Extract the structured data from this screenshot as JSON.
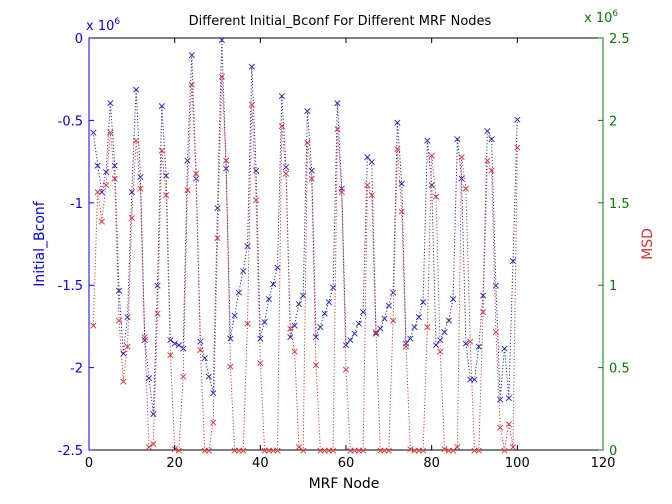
{
  "chart_data": {
    "type": "line",
    "title": "Different Initial_Bconf For Different MRF Nodes",
    "xlabel": "MRF Node",
    "ylabel_left": "Initial_Bconf",
    "ylabel_right": "MSD",
    "xlim": [
      0,
      120
    ],
    "ylim_left": [
      -2.5,
      0
    ],
    "ylim_right": [
      0,
      2.5
    ],
    "x_ticks": [
      "0",
      "20",
      "40",
      "60",
      "80",
      "100",
      "120"
    ],
    "y_ticks_left": [
      "0",
      "-0.5",
      "-1",
      "-1.5",
      "-2",
      "-2.5"
    ],
    "y_ticks_right": [
      "2.5",
      "2",
      "1.5",
      "1",
      "0.5",
      "0"
    ],
    "exponent_left_base": "x 10",
    "exponent_left_power": "6",
    "exponent_right_base": "x 10",
    "exponent_right_power": "6",
    "marker": "×",
    "colors": {
      "left": "#2020c0",
      "right": "#e03030",
      "left_axis": "#0000ff",
      "right_axis": "#008000",
      "right_label": "#e03030"
    },
    "series": [
      {
        "name": "Initial_Bconf",
        "axis": "left",
        "x": [
          1,
          2,
          3,
          4,
          5,
          6,
          7,
          8,
          9,
          10,
          11,
          12,
          13,
          14,
          15,
          16,
          17,
          18,
          19,
          20,
          21,
          22,
          23,
          24,
          25,
          26,
          27,
          28,
          29,
          30,
          31,
          32,
          33,
          34,
          35,
          36,
          37,
          38,
          39,
          40,
          41,
          42,
          43,
          44,
          45,
          46,
          47,
          48,
          49,
          50,
          51,
          52,
          53,
          54,
          55,
          56,
          57,
          58,
          59,
          60,
          61,
          62,
          63,
          64,
          65,
          66,
          67,
          68,
          69,
          70,
          71,
          72,
          73,
          74,
          75,
          76,
          77,
          78,
          79,
          80,
          81,
          82,
          83,
          84,
          85,
          86,
          87,
          88,
          89,
          90,
          91,
          92,
          93,
          94,
          95,
          96,
          97,
          98,
          99,
          100
        ],
        "values": [
          -0.57,
          -0.77,
          -0.93,
          -0.81,
          -0.39,
          -0.77,
          -1.53,
          -1.91,
          -1.69,
          -0.93,
          -0.31,
          -0.84,
          -1.83,
          -2.06,
          -2.28,
          -1.5,
          -0.41,
          -0.83,
          -1.83,
          -1.85,
          -1.86,
          -1.88,
          -0.74,
          -0.1,
          -0.85,
          -1.84,
          -1.94,
          -2.05,
          -2.15,
          -1.03,
          -0.01,
          -0.79,
          -1.82,
          -1.68,
          -1.54,
          -1.41,
          -1.26,
          -0.17,
          -0.8,
          -1.82,
          -1.72,
          -1.58,
          -1.49,
          -1.39,
          -0.35,
          -0.78,
          -1.81,
          -1.74,
          -1.61,
          -1.56,
          -0.44,
          -0.8,
          -1.81,
          -1.75,
          -1.67,
          -1.6,
          -1.51,
          -0.39,
          -0.91,
          -1.86,
          -1.83,
          -1.79,
          -1.73,
          -1.66,
          -0.72,
          -0.75,
          -1.79,
          -1.76,
          -1.7,
          -1.62,
          -1.54,
          -0.51,
          -0.88,
          -1.85,
          -1.82,
          -1.75,
          -1.69,
          -1.6,
          -0.62,
          -0.89,
          -1.86,
          -1.83,
          -1.78,
          -1.71,
          -1.58,
          -0.61,
          -0.85,
          -1.85,
          -2.07,
          -2.07,
          -1.87,
          -1.56,
          -0.56,
          -0.61,
          -1.5,
          -2.19,
          -1.88,
          -2.18,
          -1.35,
          -0.49
        ]
      },
      {
        "name": "MSD",
        "axis": "right",
        "x": [
          1,
          2,
          3,
          4,
          5,
          6,
          7,
          8,
          9,
          10,
          11,
          12,
          13,
          14,
          15,
          16,
          17,
          18,
          19,
          20,
          21,
          22,
          23,
          24,
          25,
          26,
          27,
          28,
          29,
          30,
          31,
          32,
          33,
          34,
          35,
          36,
          37,
          38,
          39,
          40,
          41,
          42,
          43,
          44,
          45,
          46,
          47,
          48,
          49,
          50,
          51,
          52,
          53,
          54,
          55,
          56,
          57,
          58,
          59,
          60,
          61,
          62,
          63,
          64,
          65,
          66,
          67,
          68,
          69,
          70,
          71,
          72,
          73,
          74,
          75,
          76,
          77,
          78,
          79,
          80,
          81,
          82,
          83,
          84,
          85,
          86,
          87,
          88,
          89,
          90,
          91,
          92,
          93,
          94,
          95,
          96,
          97,
          98,
          99,
          100
        ],
        "values": [
          0.76,
          1.57,
          1.39,
          1.61,
          1.93,
          1.65,
          0.79,
          0.42,
          0.63,
          1.41,
          1.88,
          1.59,
          0.69,
          0.02,
          0.04,
          0.83,
          1.82,
          1.55,
          0.58,
          0.01,
          0,
          0.45,
          1.58,
          2.22,
          1.68,
          0.61,
          0,
          0,
          0.17,
          1.29,
          2.27,
          1.76,
          0.51,
          0,
          0,
          0,
          0.77,
          2.1,
          1.52,
          0.53,
          0,
          0,
          0,
          0,
          1.97,
          1.68,
          0.74,
          0.6,
          0.02,
          0,
          1.87,
          1.65,
          0.52,
          0,
          0,
          0,
          0,
          1.95,
          1.57,
          0.49,
          0,
          0,
          0,
          0,
          1.61,
          1.55,
          0.72,
          0,
          0,
          0,
          0.79,
          1.83,
          1.45,
          0.63,
          0.01,
          0,
          0,
          0,
          0.75,
          1.79,
          1.54,
          0.6,
          0.01,
          0,
          0,
          0.02,
          1.78,
          1.59,
          0.66,
          0,
          0,
          0.84,
          1.76,
          1.7,
          0.72,
          0.14,
          0,
          0.16,
          0.02,
          1.84
        ]
      }
    ]
  }
}
